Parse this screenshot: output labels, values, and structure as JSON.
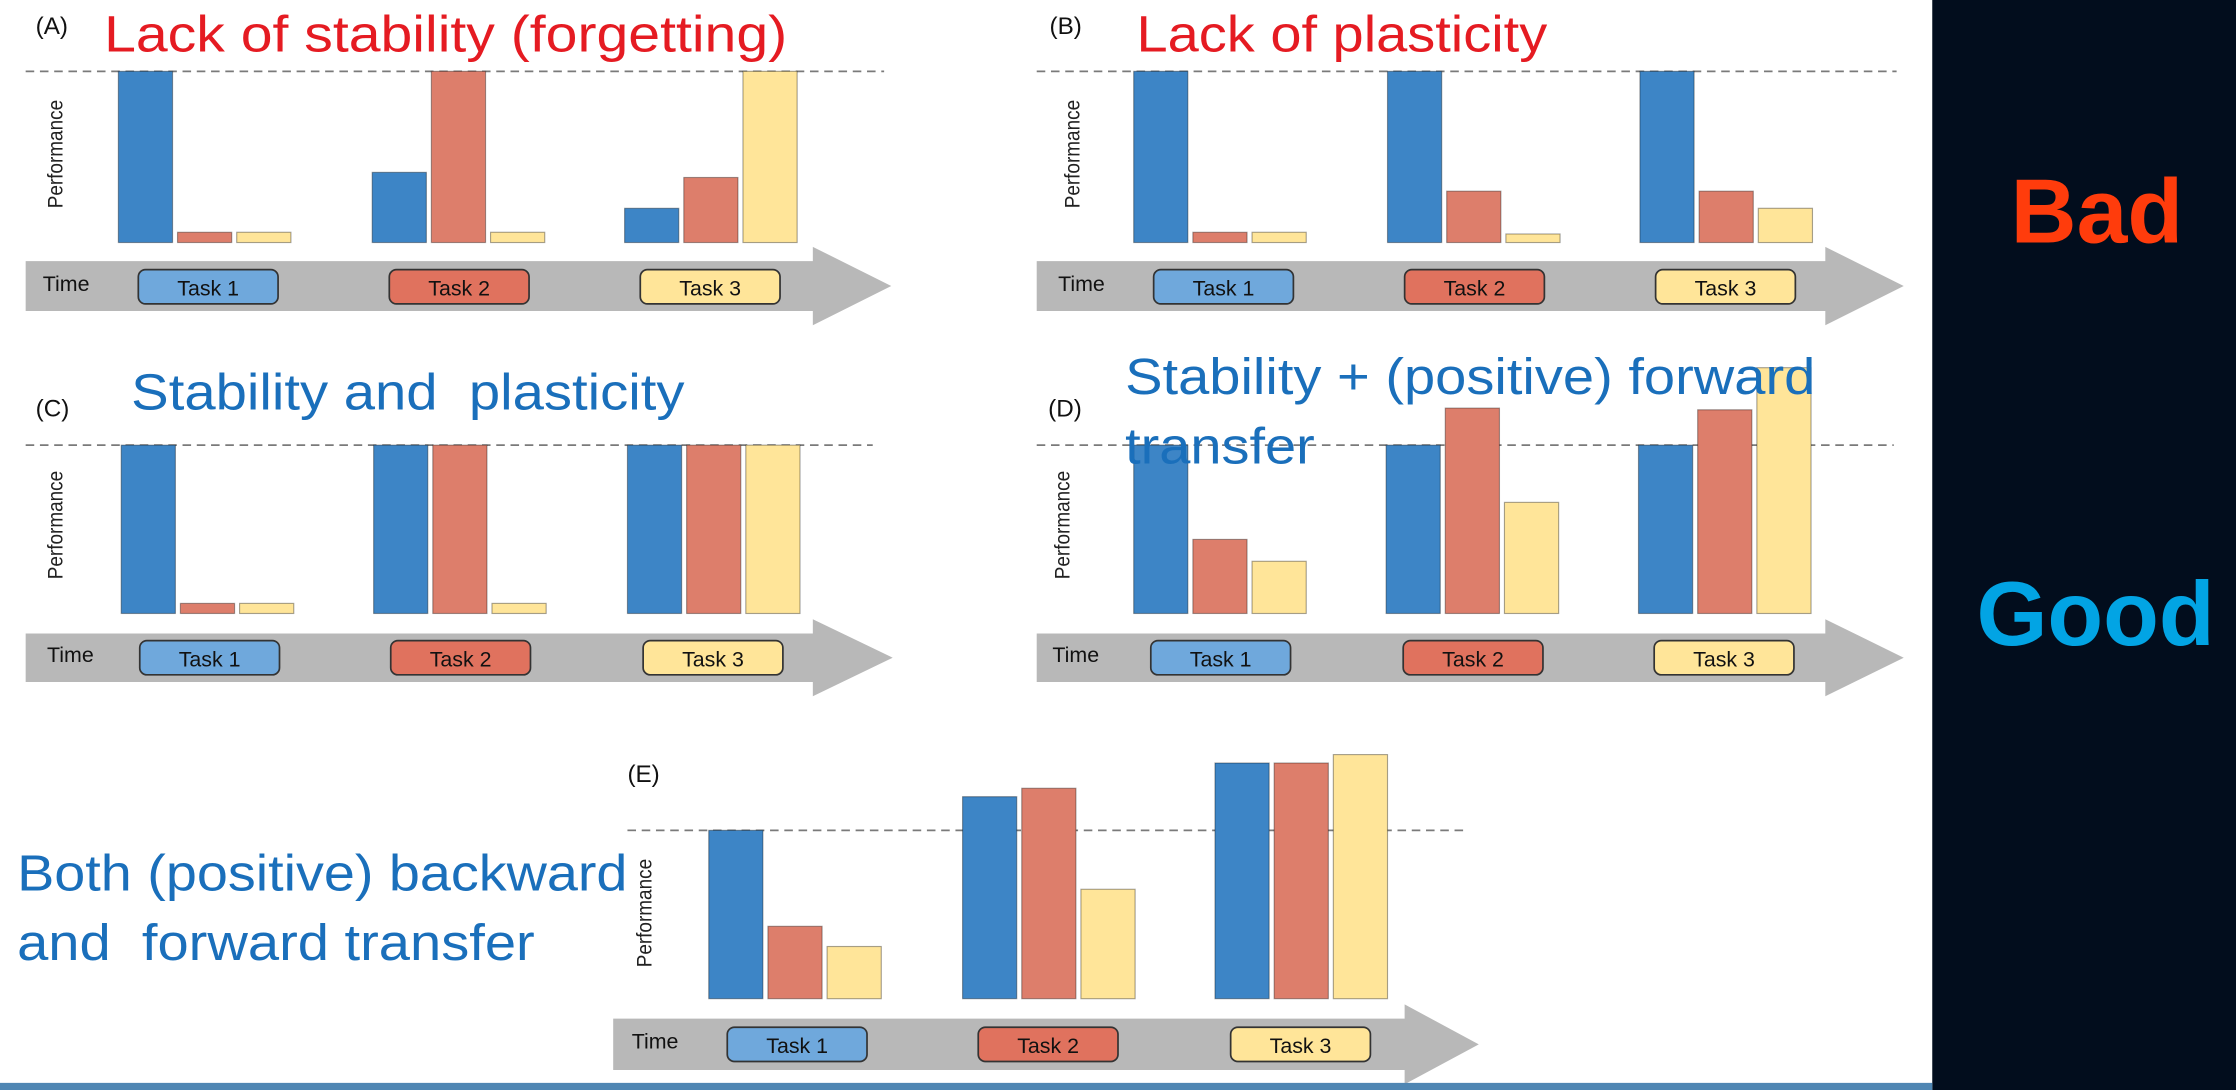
{
  "slide": {
    "side_labels": {
      "bad": "Bad",
      "good": "Good"
    },
    "colors": {
      "panel": "#020d1d",
      "bad": "#ff3c0c",
      "good": "#02a4e4",
      "title_red": "#e51b22",
      "title_blue": "#1a6fbb",
      "arrow": "#b8b8b8",
      "reference_line": "#7a7a7a",
      "bottom_edge": "#4f86b3"
    }
  },
  "chart_data": [
    {
      "panel_label": "(A)",
      "title_lines": [
        "Lack of stability (forgetting)"
      ],
      "title_color": "#e51b22",
      "type": "bar",
      "xlabel": "Time",
      "ylabel": "Performance",
      "categories": [
        "Task 1",
        "Task 2",
        "Task 3"
      ],
      "category_colors": [
        "#6fa8dc",
        "#e0725e",
        "#ffe599"
      ],
      "reference_line": 1,
      "grid": false,
      "series": [
        {
          "color": "#3d85c6",
          "values": [
            1,
            0.41,
            0.2
          ]
        },
        {
          "color": "#dd7e6b",
          "values": [
            0.06,
            1,
            0.38
          ]
        },
        {
          "color": "#ffe599",
          "values": [
            0.06,
            0.06,
            1
          ]
        }
      ]
    },
    {
      "panel_label": "(B)",
      "title_lines": [
        "Lack of plasticity"
      ],
      "title_color": "#e51b22",
      "type": "bar",
      "xlabel": "Time",
      "ylabel": "Performance",
      "categories": [
        "Task 1",
        "Task 2",
        "Task 3"
      ],
      "category_colors": [
        "#6fa8dc",
        "#e0725e",
        "#ffe599"
      ],
      "reference_line": 1,
      "grid": false,
      "series": [
        {
          "color": "#3d85c6",
          "values": [
            1,
            1,
            1
          ]
        },
        {
          "color": "#dd7e6b",
          "values": [
            0.06,
            0.3,
            0.3
          ]
        },
        {
          "color": "#ffe599",
          "values": [
            0.06,
            0.05,
            0.2
          ]
        }
      ]
    },
    {
      "panel_label": "(C)",
      "title_lines": [
        "Stability and  plasticity"
      ],
      "title_color": "#1a6fbb",
      "type": "bar",
      "xlabel": "Time",
      "ylabel": "Performance",
      "categories": [
        "Task 1",
        "Task 2",
        "Task 3"
      ],
      "category_colors": [
        "#6fa8dc",
        "#e0725e",
        "#ffe599"
      ],
      "reference_line": 1,
      "grid": false,
      "series": [
        {
          "color": "#3d85c6",
          "values": [
            1,
            1,
            1
          ]
        },
        {
          "color": "#dd7e6b",
          "values": [
            0.06,
            1,
            1
          ]
        },
        {
          "color": "#ffe599",
          "values": [
            0.06,
            0.06,
            1
          ]
        }
      ]
    },
    {
      "panel_label": "(D)",
      "title_lines": [
        "Stability + (positive) forward",
        "transfer"
      ],
      "title_color": "#1a6fbb",
      "type": "bar",
      "xlabel": "Time",
      "ylabel": "Performance",
      "categories": [
        "Task 1",
        "Task 2",
        "Task 3"
      ],
      "category_colors": [
        "#6fa8dc",
        "#e0725e",
        "#ffe599"
      ],
      "reference_line": 1,
      "grid": false,
      "series": [
        {
          "color": "#3d85c6",
          "values": [
            1,
            1,
            1
          ]
        },
        {
          "color": "#dd7e6b",
          "values": [
            0.44,
            1.22,
            1.21
          ]
        },
        {
          "color": "#ffe599",
          "values": [
            0.31,
            0.66,
            1.46
          ]
        }
      ]
    },
    {
      "panel_label": "(E)",
      "title_lines": [
        "Both (positive) backward",
        "and  forward transfer"
      ],
      "title_color": "#1a6fbb",
      "type": "bar",
      "xlabel": "Time",
      "ylabel": "Performance",
      "categories": [
        "Task 1",
        "Task 2",
        "Task 3"
      ],
      "category_colors": [
        "#6fa8dc",
        "#e0725e",
        "#ffe599"
      ],
      "reference_line": 1,
      "grid": false,
      "series": [
        {
          "color": "#3d85c6",
          "values": [
            1,
            1.2,
            1.4
          ]
        },
        {
          "color": "#dd7e6b",
          "values": [
            0.43,
            1.25,
            1.4
          ]
        },
        {
          "color": "#ffe599",
          "values": [
            0.31,
            0.65,
            1.45
          ]
        }
      ]
    }
  ]
}
